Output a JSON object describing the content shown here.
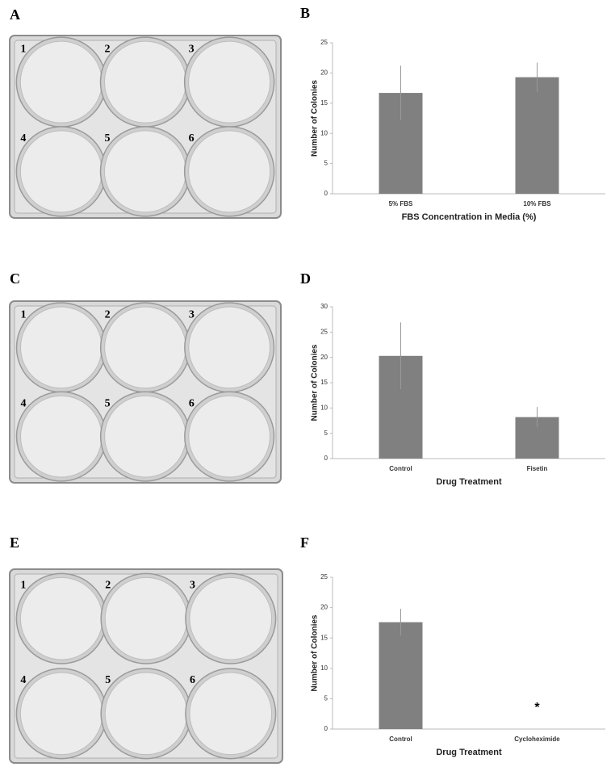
{
  "panel_labels": [
    "A",
    "B",
    "C",
    "D",
    "E",
    "F"
  ],
  "plates": [
    {
      "wells": [
        "1",
        "2",
        "3",
        "4",
        "5",
        "6"
      ]
    },
    {
      "wells": [
        "1",
        "2",
        "3",
        "4",
        "5",
        "6"
      ]
    },
    {
      "wells": [
        "1",
        "2",
        "3",
        "4",
        "5",
        "6"
      ]
    }
  ],
  "chart_data": [
    {
      "type": "bar",
      "ylabel": "Number of Colonies",
      "xlabel": "FBS Concentration in Media (%)",
      "categories": [
        "5% FBS",
        "10% FBS"
      ],
      "values": [
        16.7,
        19.3
      ],
      "errors": [
        4.5,
        2.4
      ],
      "color": "#808080",
      "ylim": [
        0,
        25
      ],
      "yticks": [
        0,
        5,
        10,
        15,
        20,
        25
      ]
    },
    {
      "type": "bar",
      "ylabel": "Number of Colonies",
      "xlabel": "Drug Treatment",
      "categories": [
        "Control",
        "Fisetin"
      ],
      "values": [
        20.3,
        8.2
      ],
      "errors": [
        6.6,
        2.0
      ],
      "color": "#808080",
      "ylim": [
        0,
        30
      ],
      "yticks": [
        0,
        5,
        10,
        15,
        20,
        25,
        30
      ]
    },
    {
      "type": "bar",
      "ylabel": "Number of Colonies",
      "xlabel": "Drug Treatment",
      "categories": [
        "Control",
        "Cycloheximide"
      ],
      "values": [
        17.6,
        0
      ],
      "errors": [
        2.2,
        0
      ],
      "annotation": "*",
      "color": "#808080",
      "ylim": [
        0,
        25
      ],
      "yticks": [
        0,
        5,
        10,
        15,
        20,
        25
      ]
    }
  ]
}
